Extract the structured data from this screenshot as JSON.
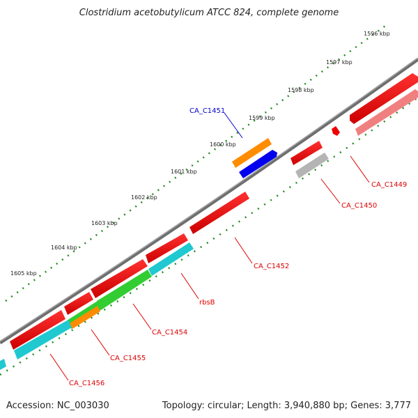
{
  "title": "Clostridium acetobutylicum ATCC 824, complete genome",
  "footer": {
    "accession": "Accession: NC_003030",
    "summary": "Topology: circular; Length: 3,940,880 bp; Genes: 3,777"
  },
  "scale": {
    "unit": "kbp",
    "ticks": [
      "1596 kbp",
      "1597 kbp",
      "1598 kbp",
      "1599 kbp",
      "1600 kbp",
      "1601 kbp",
      "1602 kbp",
      "1603 kbp",
      "1604 kbp",
      "1605 kbp"
    ]
  },
  "colors": {
    "backbone": "#7f7f7f",
    "gene_forward": "#ee0000",
    "gene_faded": "#f08080",
    "gene_grey": "#b4b4b4",
    "orange": "#ff8c00",
    "blue": "#0000ee",
    "cyan": "#20c8d0",
    "green": "#32cd32",
    "label_red": "#dd0000",
    "label_blue": "#0000cc",
    "tick_green": "#228b22"
  },
  "gene_labels": [
    {
      "id": "CA_C1449",
      "color": "red"
    },
    {
      "id": "CA_C1450",
      "color": "red"
    },
    {
      "id": "CA_C1451",
      "color": "blue"
    },
    {
      "id": "CA_C1452",
      "color": "red"
    },
    {
      "id": "rbsB",
      "color": "red"
    },
    {
      "id": "CA_C1454",
      "color": "red"
    },
    {
      "id": "CA_C1455",
      "color": "red"
    },
    {
      "id": "CA_C1456",
      "color": "red"
    }
  ]
}
